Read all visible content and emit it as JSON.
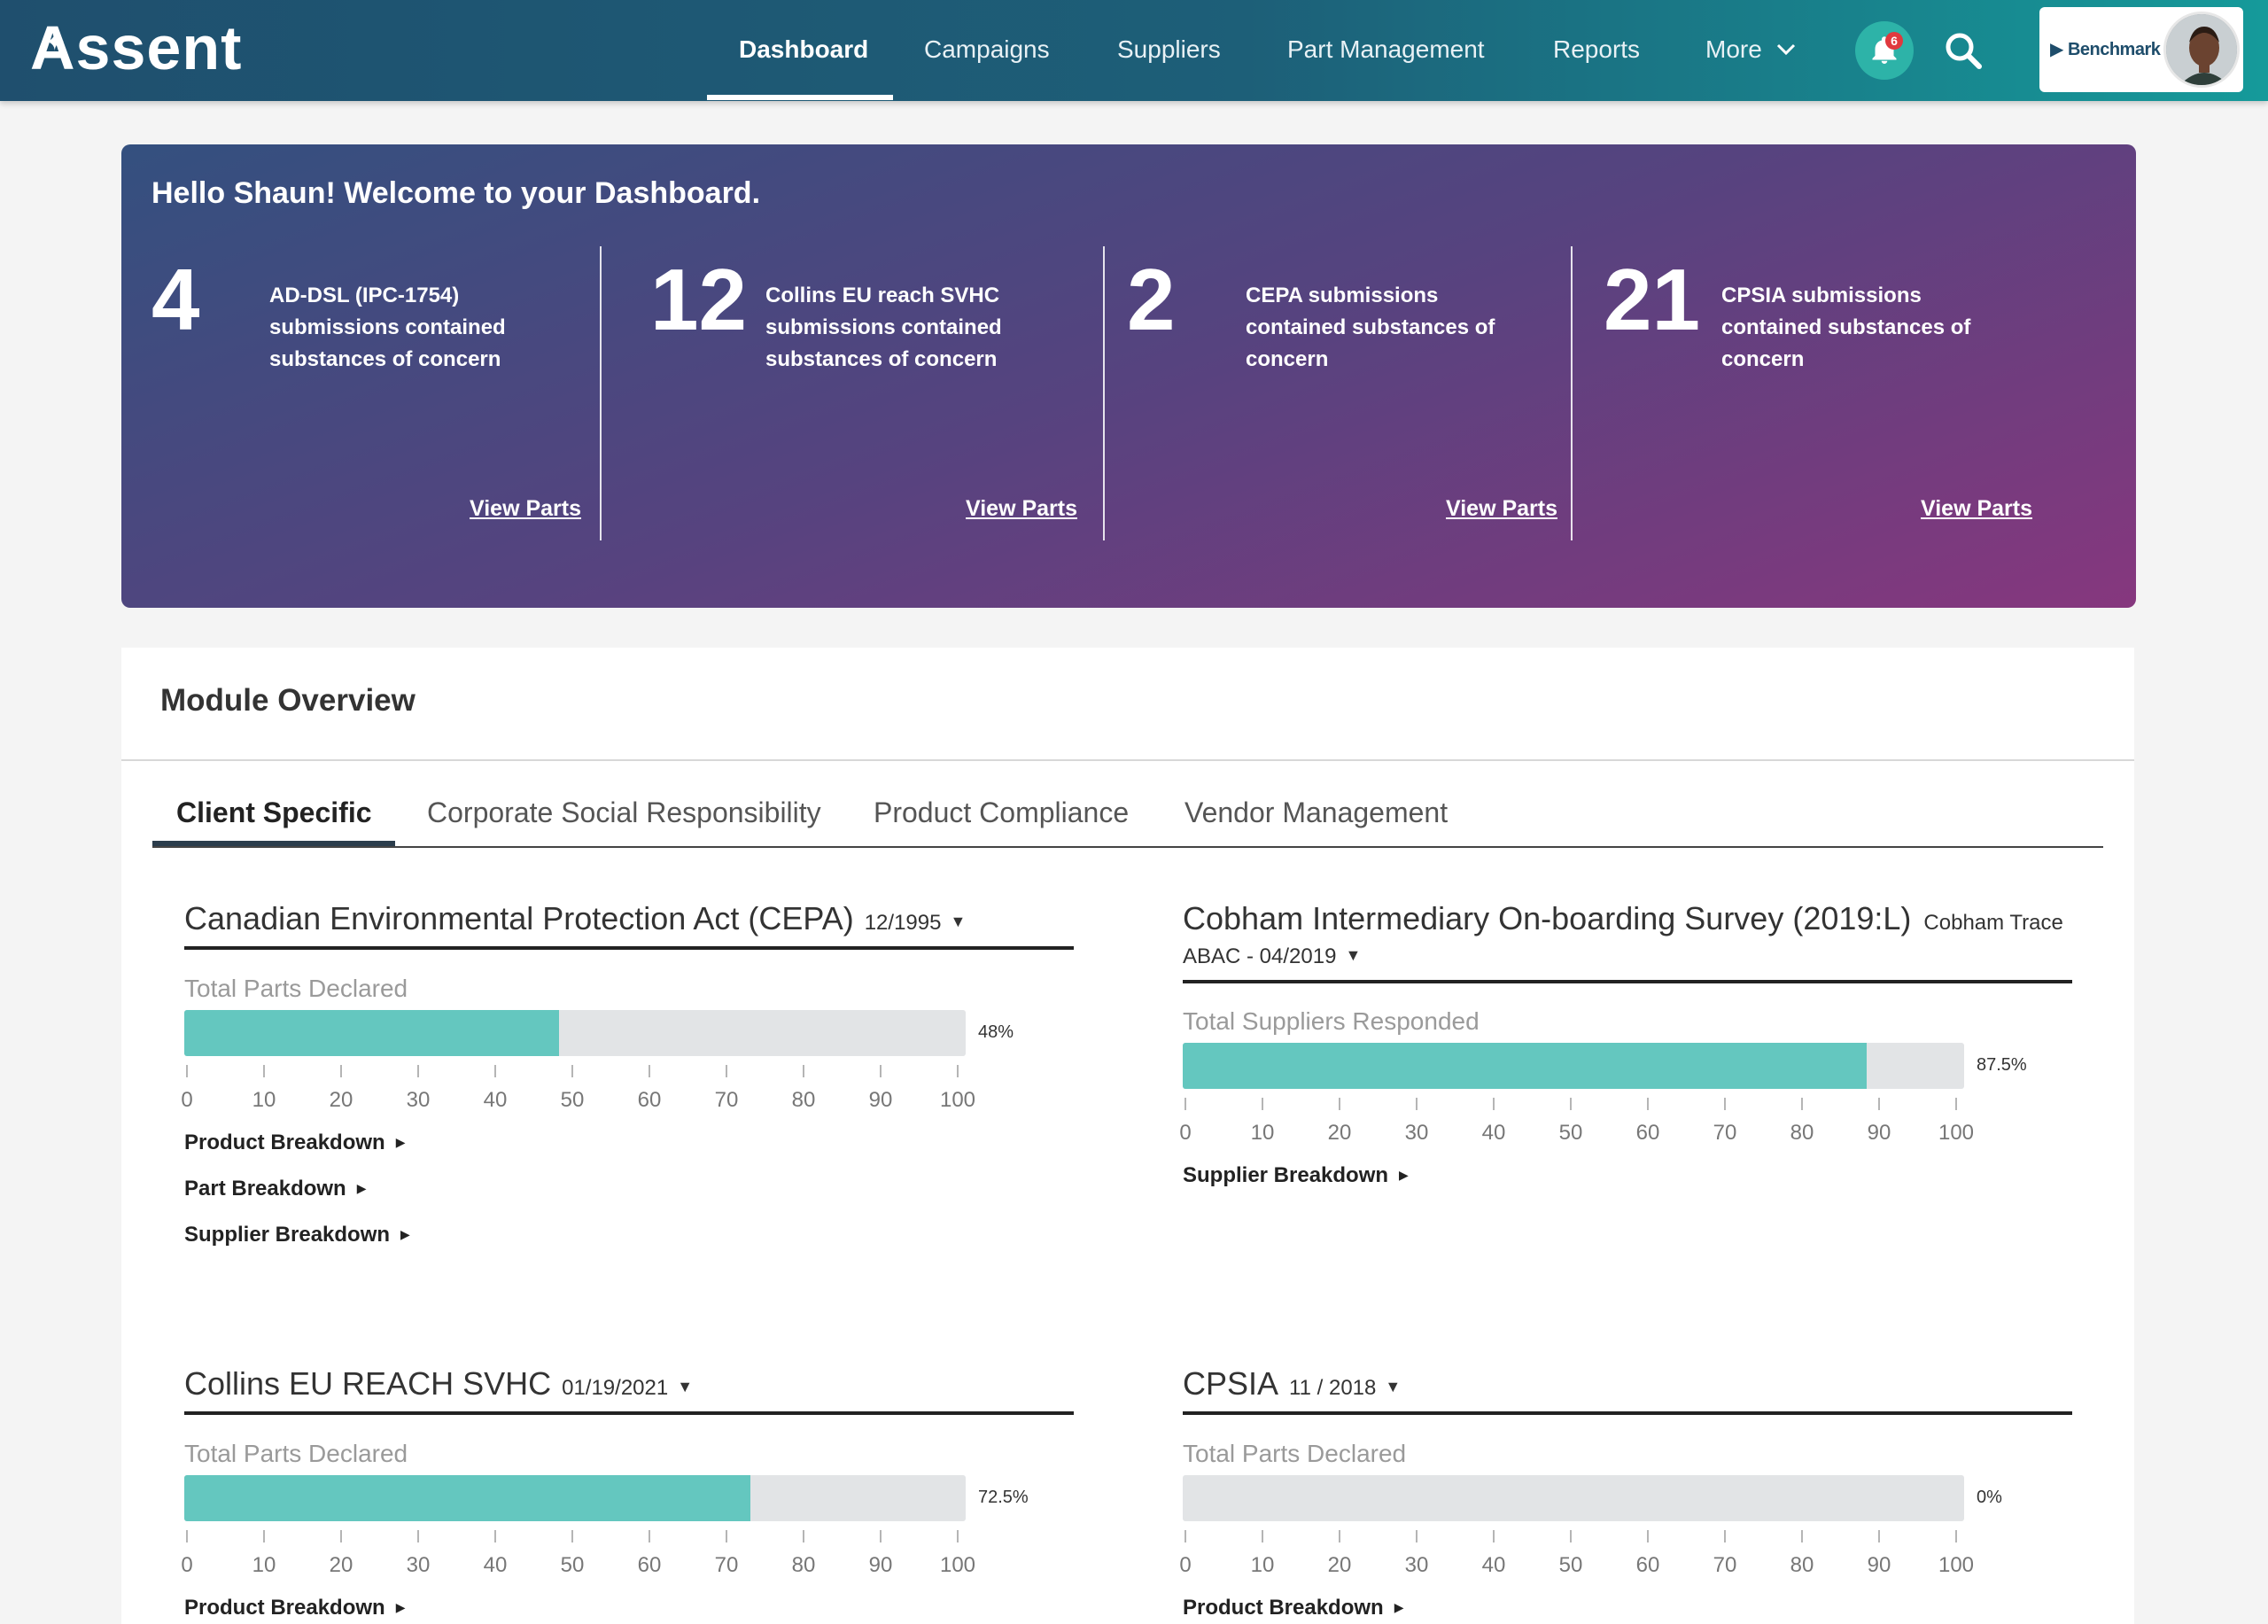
{
  "nav": {
    "logo": "Assent",
    "items": [
      {
        "label": "Dashboard"
      },
      {
        "label": "Campaigns"
      },
      {
        "label": "Suppliers"
      },
      {
        "label": "Part Management"
      },
      {
        "label": "Reports"
      },
      {
        "label": "More"
      }
    ],
    "notification_count": "6",
    "benchmark_label": "▶ Benchmark"
  },
  "hero": {
    "title": "Hello Shaun! Welcome to your Dashboard.",
    "stats": [
      {
        "value": "4",
        "text": "AD-DSL (IPC-1754) submissions contained substances of concern",
        "link": "View Parts"
      },
      {
        "value": "12",
        "text": "Collins EU reach SVHC submissions contained substances of concern",
        "link": "View Parts"
      },
      {
        "value": "2",
        "text": "CEPA submissions contained substances of concern",
        "link": "View Parts"
      },
      {
        "value": "21",
        "text": "CPSIA submissions contained substances of concern",
        "link": "View Parts"
      }
    ]
  },
  "module_overview": {
    "title": "Module Overview",
    "tabs": [
      {
        "label": "Client Specific"
      },
      {
        "label": "Corporate Social Responsibility"
      },
      {
        "label": "Product Compliance"
      },
      {
        "label": "Vendor Management"
      }
    ],
    "axis_ticks": [
      "0",
      "10",
      "20",
      "30",
      "40",
      "50",
      "60",
      "70",
      "80",
      "90",
      "100"
    ],
    "modules": [
      {
        "title": "Canadian Environmental Protection Act (CEPA)",
        "date": "12/1995",
        "metric_label": "Total Parts Declared",
        "value": 48,
        "value_label": "48%",
        "breakdowns": [
          "Product Breakdown",
          "Part Breakdown",
          "Supplier Breakdown"
        ]
      },
      {
        "title": "Cobham Intermediary On-boarding Survey (2019:L)",
        "subtitle": "Cobham Trace",
        "date": "ABAC - 04/2019",
        "metric_label": "Total Suppliers Responded",
        "value": 87.5,
        "value_label": "87.5%",
        "breakdowns": [
          "Supplier Breakdown"
        ]
      },
      {
        "title": "Collins EU REACH SVHC",
        "date": "01/19/2021",
        "metric_label": "Total Parts Declared",
        "value": 72.5,
        "value_label": "72.5%",
        "breakdowns": [
          "Product Breakdown"
        ]
      },
      {
        "title": "CPSIA",
        "date": "11 / 2018",
        "metric_label": "Total Parts Declared",
        "value": 0,
        "value_label": "0%",
        "breakdowns": [
          "Product Breakdown"
        ]
      }
    ]
  },
  "colors": {
    "bar_fill": "#64c7bf",
    "bar_track": "#e2e4e6",
    "nav_gradient_start": "#1f4f6e",
    "nav_gradient_end": "#159a9a",
    "hero_gradient_start": "#34507f",
    "hero_gradient_end": "#86377e"
  },
  "icons": [
    "bell-icon",
    "search-icon",
    "chevron-down-icon",
    "caret-down-icon",
    "caret-right-icon",
    "play-icon"
  ]
}
